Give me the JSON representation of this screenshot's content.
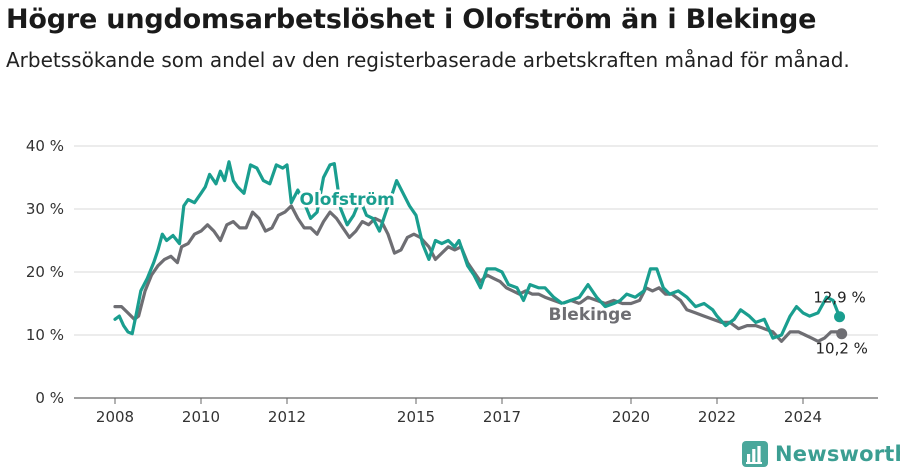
{
  "header": {
    "title": "Högre ungdomsarbetslöshet i Olofström än i Blekinge",
    "subtitle": "Arbetssökande som andel av den registerbaserade arbetskraften månad för månad."
  },
  "brand": {
    "name": "Newsworthy",
    "icon": "newsworthy-logo-icon",
    "color": "#3b9e92"
  },
  "chart_data": {
    "type": "line",
    "title": "Högre ungdomsarbetslöshet i Olofström än i Blekinge",
    "subtitle": "Arbetssökande som andel av den registerbaserade arbetskraften månad för månad.",
    "xlabel": "",
    "ylabel": "",
    "x_range": [
      2008,
      2025
    ],
    "ylim": [
      0,
      40
    ],
    "y_ticks": [
      0,
      10,
      20,
      30,
      40
    ],
    "y_tick_labels": [
      "0 %",
      "10 %",
      "20 %",
      "30 %",
      "40 %"
    ],
    "x_ticks": [
      2008,
      2010,
      2012,
      2015,
      2017,
      2020,
      2022,
      2024
    ],
    "x_tick_labels": [
      "2008",
      "2010",
      "2012",
      "2015",
      "2017",
      "2020",
      "2022",
      "2024"
    ],
    "grid": "horizontal",
    "legend": "inline labels",
    "series": [
      {
        "name": "Olofström",
        "color": "#1a9e8f",
        "end_label": "12,9 %",
        "points": [
          [
            2008.0,
            12.5
          ],
          [
            2008.1,
            13.0
          ],
          [
            2008.2,
            11.5
          ],
          [
            2008.3,
            10.5
          ],
          [
            2008.4,
            10.2
          ],
          [
            2008.5,
            13.5
          ],
          [
            2008.6,
            17.0
          ],
          [
            2008.75,
            19.0
          ],
          [
            2008.9,
            21.5
          ],
          [
            2009.0,
            23.5
          ],
          [
            2009.1,
            26.0
          ],
          [
            2009.2,
            25.0
          ],
          [
            2009.35,
            25.8
          ],
          [
            2009.5,
            24.5
          ],
          [
            2009.6,
            30.5
          ],
          [
            2009.7,
            31.5
          ],
          [
            2009.85,
            31.0
          ],
          [
            2010.0,
            32.5
          ],
          [
            2010.1,
            33.5
          ],
          [
            2010.2,
            35.5
          ],
          [
            2010.35,
            34.0
          ],
          [
            2010.45,
            36.0
          ],
          [
            2010.55,
            34.5
          ],
          [
            2010.65,
            37.5
          ],
          [
            2010.75,
            34.5
          ],
          [
            2010.85,
            33.5
          ],
          [
            2011.0,
            32.5
          ],
          [
            2011.15,
            37.0
          ],
          [
            2011.3,
            36.5
          ],
          [
            2011.45,
            34.5
          ],
          [
            2011.6,
            34.0
          ],
          [
            2011.75,
            37.0
          ],
          [
            2011.9,
            36.5
          ],
          [
            2012.0,
            37.0
          ],
          [
            2012.1,
            31.0
          ],
          [
            2012.25,
            33.0
          ],
          [
            2012.4,
            31.0
          ],
          [
            2012.55,
            28.5
          ],
          [
            2012.7,
            29.5
          ],
          [
            2012.85,
            35.0
          ],
          [
            2013.0,
            37.0
          ],
          [
            2013.1,
            37.2
          ],
          [
            2013.25,
            30.0
          ],
          [
            2013.4,
            27.5
          ],
          [
            2013.55,
            29.0
          ],
          [
            2013.7,
            31.5
          ],
          [
            2013.85,
            29.0
          ],
          [
            2014.0,
            28.5
          ],
          [
            2014.15,
            26.5
          ],
          [
            2014.3,
            29.5
          ],
          [
            2014.45,
            32.5
          ],
          [
            2014.55,
            34.5
          ],
          [
            2014.7,
            32.5
          ],
          [
            2014.85,
            30.5
          ],
          [
            2015.0,
            29.0
          ],
          [
            2015.15,
            24.5
          ],
          [
            2015.3,
            22.0
          ],
          [
            2015.45,
            25.0
          ],
          [
            2015.6,
            24.5
          ],
          [
            2015.75,
            25.0
          ],
          [
            2015.9,
            24.0
          ],
          [
            2016.0,
            25.0
          ],
          [
            2016.2,
            21.0
          ],
          [
            2016.35,
            19.5
          ],
          [
            2016.5,
            17.5
          ],
          [
            2016.65,
            20.5
          ],
          [
            2016.85,
            20.5
          ],
          [
            2017.0,
            20.0
          ],
          [
            2017.15,
            18.0
          ],
          [
            2017.35,
            17.5
          ],
          [
            2017.5,
            15.5
          ],
          [
            2017.65,
            18.0
          ],
          [
            2017.85,
            17.5
          ],
          [
            2018.0,
            17.5
          ],
          [
            2018.2,
            16.0
          ],
          [
            2018.4,
            15.0
          ],
          [
            2018.6,
            15.5
          ],
          [
            2018.8,
            16.0
          ],
          [
            2019.0,
            18.0
          ],
          [
            2019.2,
            16.0
          ],
          [
            2019.4,
            14.5
          ],
          [
            2019.6,
            15.0
          ],
          [
            2019.75,
            15.5
          ],
          [
            2019.9,
            16.5
          ],
          [
            2020.1,
            16.0
          ],
          [
            2020.3,
            17.0
          ],
          [
            2020.45,
            20.5
          ],
          [
            2020.6,
            20.5
          ],
          [
            2020.75,
            17.5
          ],
          [
            2020.9,
            16.5
          ],
          [
            2021.1,
            17.0
          ],
          [
            2021.3,
            16.0
          ],
          [
            2021.5,
            14.5
          ],
          [
            2021.7,
            15.0
          ],
          [
            2021.9,
            14.0
          ],
          [
            2022.0,
            13.0
          ],
          [
            2022.2,
            11.5
          ],
          [
            2022.4,
            12.5
          ],
          [
            2022.55,
            14.0
          ],
          [
            2022.75,
            13.0
          ],
          [
            2022.9,
            12.0
          ],
          [
            2023.1,
            12.5
          ],
          [
            2023.3,
            9.5
          ],
          [
            2023.5,
            10.0
          ],
          [
            2023.7,
            13.0
          ],
          [
            2023.85,
            14.5
          ],
          [
            2024.0,
            13.5
          ],
          [
            2024.15,
            13.0
          ],
          [
            2024.35,
            13.5
          ],
          [
            2024.55,
            16.0
          ],
          [
            2024.7,
            15.5
          ],
          [
            2024.85,
            12.9
          ]
        ]
      },
      {
        "name": "Blekinge",
        "color": "#6e6e73",
        "end_label": "10,2 %",
        "points": [
          [
            2008.0,
            14.5
          ],
          [
            2008.15,
            14.5
          ],
          [
            2008.3,
            13.5
          ],
          [
            2008.45,
            12.5
          ],
          [
            2008.55,
            13.0
          ],
          [
            2008.7,
            17.0
          ],
          [
            2008.85,
            19.5
          ],
          [
            2009.0,
            21.0
          ],
          [
            2009.15,
            22.0
          ],
          [
            2009.3,
            22.5
          ],
          [
            2009.45,
            21.5
          ],
          [
            2009.55,
            24.0
          ],
          [
            2009.7,
            24.5
          ],
          [
            2009.85,
            26.0
          ],
          [
            2010.0,
            26.5
          ],
          [
            2010.15,
            27.5
          ],
          [
            2010.3,
            26.5
          ],
          [
            2010.45,
            25.0
          ],
          [
            2010.6,
            27.5
          ],
          [
            2010.75,
            28.0
          ],
          [
            2010.9,
            27.0
          ],
          [
            2011.05,
            27.0
          ],
          [
            2011.2,
            29.5
          ],
          [
            2011.35,
            28.5
          ],
          [
            2011.5,
            26.5
          ],
          [
            2011.65,
            27.0
          ],
          [
            2011.8,
            29.0
          ],
          [
            2011.95,
            29.5
          ],
          [
            2012.1,
            30.5
          ],
          [
            2012.25,
            28.5
          ],
          [
            2012.4,
            27.0
          ],
          [
            2012.55,
            27.0
          ],
          [
            2012.7,
            26.0
          ],
          [
            2012.85,
            28.0
          ],
          [
            2013.0,
            29.5
          ],
          [
            2013.15,
            28.5
          ],
          [
            2013.3,
            27.0
          ],
          [
            2013.45,
            25.5
          ],
          [
            2013.6,
            26.5
          ],
          [
            2013.75,
            28.0
          ],
          [
            2013.9,
            27.5
          ],
          [
            2014.05,
            28.5
          ],
          [
            2014.2,
            28.0
          ],
          [
            2014.35,
            26.0
          ],
          [
            2014.5,
            23.0
          ],
          [
            2014.65,
            23.5
          ],
          [
            2014.8,
            25.5
          ],
          [
            2014.95,
            26.0
          ],
          [
            2015.1,
            25.5
          ],
          [
            2015.3,
            24.0
          ],
          [
            2015.45,
            22.0
          ],
          [
            2015.6,
            23.0
          ],
          [
            2015.75,
            24.0
          ],
          [
            2015.9,
            23.5
          ],
          [
            2016.05,
            24.0
          ],
          [
            2016.2,
            21.5
          ],
          [
            2016.35,
            20.0
          ],
          [
            2016.5,
            18.5
          ],
          [
            2016.65,
            19.5
          ],
          [
            2016.8,
            19.0
          ],
          [
            2016.95,
            18.5
          ],
          [
            2017.1,
            17.5
          ],
          [
            2017.25,
            17.0
          ],
          [
            2017.4,
            16.5
          ],
          [
            2017.55,
            17.0
          ],
          [
            2017.7,
            16.5
          ],
          [
            2017.85,
            16.5
          ],
          [
            2018.0,
            16.0
          ],
          [
            2018.2,
            15.5
          ],
          [
            2018.4,
            15.0
          ],
          [
            2018.6,
            15.5
          ],
          [
            2018.8,
            15.0
          ],
          [
            2019.0,
            16.0
          ],
          [
            2019.2,
            15.5
          ],
          [
            2019.4,
            15.0
          ],
          [
            2019.6,
            15.5
          ],
          [
            2019.8,
            15.0
          ],
          [
            2020.0,
            15.0
          ],
          [
            2020.2,
            15.5
          ],
          [
            2020.35,
            17.5
          ],
          [
            2020.5,
            17.0
          ],
          [
            2020.65,
            17.5
          ],
          [
            2020.8,
            16.5
          ],
          [
            2020.95,
            16.5
          ],
          [
            2021.15,
            15.5
          ],
          [
            2021.3,
            14.0
          ],
          [
            2021.5,
            13.5
          ],
          [
            2021.7,
            13.0
          ],
          [
            2021.9,
            12.5
          ],
          [
            2022.1,
            12.0
          ],
          [
            2022.3,
            12.0
          ],
          [
            2022.5,
            11.0
          ],
          [
            2022.7,
            11.5
          ],
          [
            2022.9,
            11.5
          ],
          [
            2023.1,
            11.0
          ],
          [
            2023.3,
            10.5
          ],
          [
            2023.5,
            9.0
          ],
          [
            2023.7,
            10.5
          ],
          [
            2023.9,
            10.5
          ],
          [
            2024.05,
            10.0
          ],
          [
            2024.2,
            9.5
          ],
          [
            2024.35,
            9.0
          ],
          [
            2024.5,
            9.5
          ],
          [
            2024.65,
            10.5
          ],
          [
            2024.8,
            10.5
          ],
          [
            2024.9,
            10.2
          ]
        ]
      }
    ]
  }
}
